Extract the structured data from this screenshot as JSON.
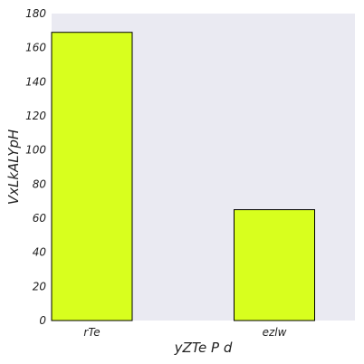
{
  "chart_data": {
    "type": "bar",
    "categories": [
      "rTe",
      "ezlw"
    ],
    "values": [
      169,
      65
    ],
    "xlabel": "yZTe P d",
    "ylabel": "VxLkALYpH",
    "ylim": [
      0,
      180
    ],
    "yticks": [
      0,
      20,
      40,
      60,
      80,
      100,
      120,
      140,
      160,
      180
    ],
    "grid": false,
    "legend": "none"
  },
  "colors": {
    "plot_background": "#eaeaf2",
    "bar_fill": "#d8ff1e",
    "bar_edge": "#000000"
  }
}
